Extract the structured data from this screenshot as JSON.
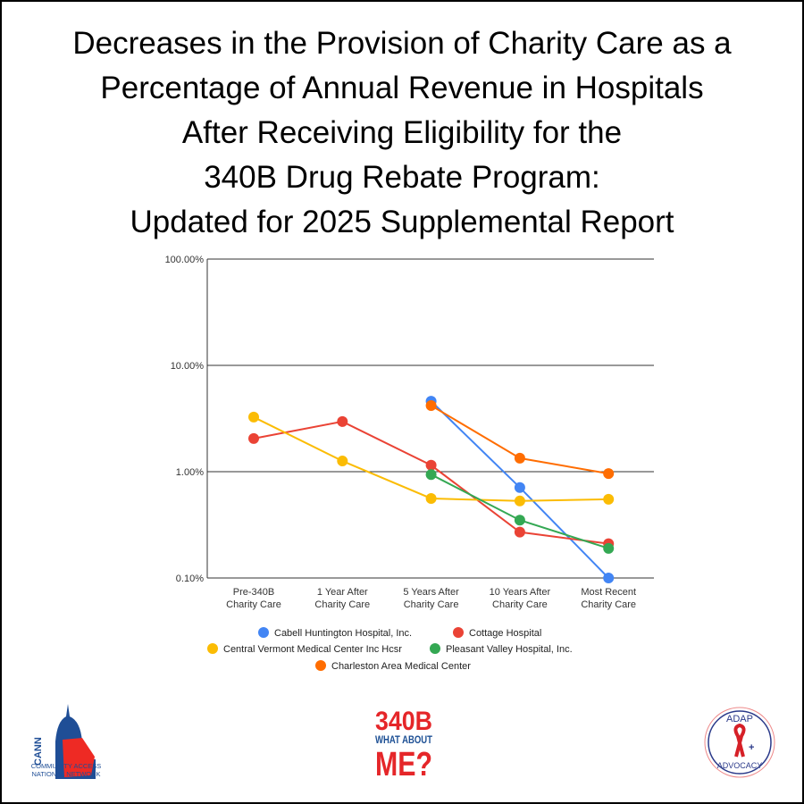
{
  "title_lines": [
    "Decreases in the Provision of Charity Care as a",
    "Percentage of Annual Revenue in Hospitals",
    "After Receiving Eligibility for the",
    "340B Drug Rebate Program:",
    "Updated for 2025 Supplemental Report"
  ],
  "chart_data": {
    "type": "line",
    "title": "Decreases in the Provision of Charity Care as a Percentage of Annual Revenue in Hospitals After Receiving Eligibility for the 340B Drug Rebate Program: Updated for 2025 Supplemental Report",
    "categories": [
      [
        "Pre-340B",
        "Charity Care"
      ],
      [
        "1 Year After",
        "Charity Care"
      ],
      [
        "5 Years After",
        "Charity Care"
      ],
      [
        "10 Years After",
        "Charity Care"
      ],
      [
        "Most Recent",
        "Charity Care"
      ]
    ],
    "y_scale": "log",
    "ylim": [
      0.1,
      100
    ],
    "y_ticks": [
      0.1,
      1,
      10,
      100
    ],
    "y_tick_labels": [
      "0.10%",
      "1.00%",
      "10.00%",
      "100.00%"
    ],
    "grid": "horizontal major gridlines",
    "legend_position": "bottom",
    "series": [
      {
        "name": "Cabell Huntington Hospital, Inc.",
        "color": "#4285f4",
        "values": [
          null,
          null,
          4.6,
          0.71,
          0.1
        ]
      },
      {
        "name": "Cottage Hospital",
        "color": "#ea4335",
        "values": [
          2.05,
          2.96,
          1.15,
          0.27,
          0.21
        ]
      },
      {
        "name": "Central Vermont Medical Center Inc Hcsr",
        "color": "#fbbc04",
        "values": [
          3.26,
          1.26,
          0.56,
          0.53,
          0.55
        ]
      },
      {
        "name": "Pleasant Valley Hospital, Inc.",
        "color": "#34a853",
        "values": [
          null,
          null,
          0.94,
          0.35,
          0.19
        ]
      },
      {
        "name": "Charleston Area Medical Center",
        "color": "#ff6d01",
        "values": [
          null,
          null,
          4.19,
          1.34,
          0.96
        ]
      }
    ]
  },
  "logos": {
    "cann": {
      "mark": "CANN",
      "line1": "COMMUNITY ACCESS",
      "line2": "NATIONAL NETWORK"
    },
    "whataboutme": {
      "line1": "340B",
      "line2": "WHAT ABOUT",
      "line3": "ME?"
    },
    "adap": {
      "arc": "ADAP Drug Assistance Programs",
      "top": "ADAP",
      "bottom": "ADVOCACY"
    }
  }
}
